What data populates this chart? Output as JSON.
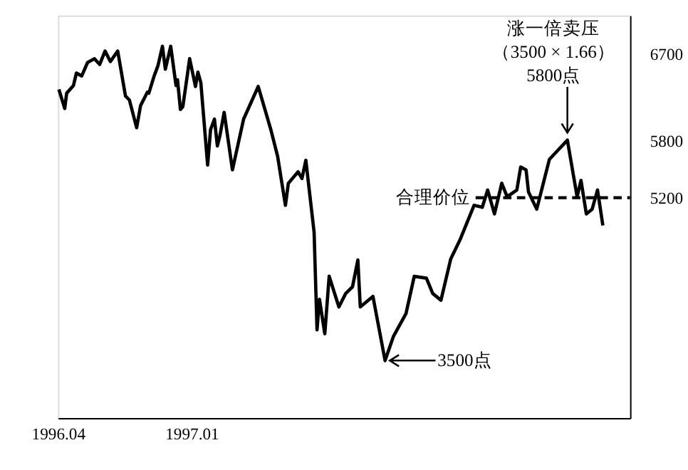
{
  "chart_data": {
    "type": "line",
    "x": [
      "1996-04-03",
      "1996-04-15",
      "1996-04-19",
      "1996-05-03",
      "1996-05-09",
      "1996-05-20",
      "1996-06-01",
      "1996-06-15",
      "1996-06-26",
      "1996-07-07",
      "1996-07-18",
      "1996-08-02",
      "1996-08-18",
      "1996-08-26",
      "1996-09-10",
      "1996-09-18",
      "1996-10-02",
      "1996-10-05",
      "1996-10-16",
      "1996-10-24",
      "1996-11-02",
      "1996-11-08",
      "1996-11-19",
      "1996-11-30",
      "1996-12-03",
      "1996-12-09",
      "1996-12-14",
      "1996-12-28",
      "1997-01-09",
      "1997-01-14",
      "1997-01-20",
      "1997-02-03",
      "1997-02-09",
      "1997-02-17",
      "1997-02-23",
      "1997-02-28",
      "1997-03-09",
      "1997-03-26",
      "1997-04-18",
      "1997-05-18",
      "1997-06-13",
      "1997-06-27",
      "1997-07-13",
      "1997-07-19",
      "1997-08-08",
      "1997-08-16",
      "1997-08-24",
      "1997-09-10",
      "1997-09-16",
      "1997-09-21",
      "1997-10-02",
      "1997-10-11",
      "1997-10-31",
      "1997-11-14",
      "1997-11-28",
      "1997-12-09",
      "1997-12-14",
      "1998-01-09",
      "1998-02-03",
      "1998-02-20",
      "1998-03-18",
      "1998-04-04",
      "1998-04-29",
      "1998-05-12",
      "1998-05-29",
      "1998-06-18",
      "1998-07-08",
      "1998-08-05",
      "1998-08-22",
      "1998-09-02",
      "1998-09-16",
      "1998-10-01",
      "1998-10-12",
      "1998-11-01",
      "1998-11-09",
      "1998-11-20",
      "1998-11-25",
      "1998-12-12",
      "1999-01-07",
      "1999-02-13",
      "1999-03-05",
      "1999-03-13",
      "1999-03-24",
      "1999-04-05",
      "1999-04-16",
      "1999-04-27"
    ],
    "series": [
      {
        "color": "#000000",
        "values": [
          6330,
          6130,
          6290,
          6370,
          6500,
          6470,
          6610,
          6650,
          6590,
          6730,
          6620,
          6730,
          6260,
          6220,
          5930,
          6160,
          6300,
          6290,
          6470,
          6580,
          6780,
          6540,
          6780,
          6370,
          6430,
          6120,
          6150,
          6650,
          6360,
          6510,
          6400,
          5540,
          5910,
          6020,
          5740,
          5840,
          6090,
          5490,
          6020,
          6360,
          5910,
          5630,
          5120,
          5350,
          5470,
          5400,
          5590,
          4840,
          3820,
          4140,
          3780,
          4380,
          4060,
          4200,
          4270,
          4550,
          4060,
          4170,
          3500,
          3750,
          3990,
          4380,
          4360,
          4200,
          4130,
          4560,
          4770,
          5120,
          5100,
          5280,
          5030,
          5350,
          5210,
          5280,
          5520,
          5490,
          5260,
          5080,
          5600,
          5800,
          5210,
          5380,
          5030,
          5080,
          5280,
          4910
        ]
      }
    ],
    "xlim": [
      "1996-04-01",
      "1999-06-22"
    ],
    "ylim": [
      2900,
      7100
    ],
    "xticks": [
      {
        "value": "1996-04-01",
        "label": "1996.04"
      },
      {
        "value": "1997-01-01",
        "label": "1997.01"
      }
    ],
    "yticks": [
      5200,
      5800,
      6700
    ],
    "ref_lines": [
      {
        "axis": "y",
        "value": 5200,
        "label": "合理价位",
        "color": "#000000",
        "line_style": "dashed"
      }
    ],
    "annotations": [
      "涨一倍卖压",
      "（3500 × 1.66）",
      {
        "text": "5800点",
        "x": "1999-02-13",
        "y": 5800
      },
      {
        "text": "3500点",
        "x": "1998-02-03",
        "y": 3500
      }
    ],
    "line_style": "solid",
    "grid": false
  }
}
